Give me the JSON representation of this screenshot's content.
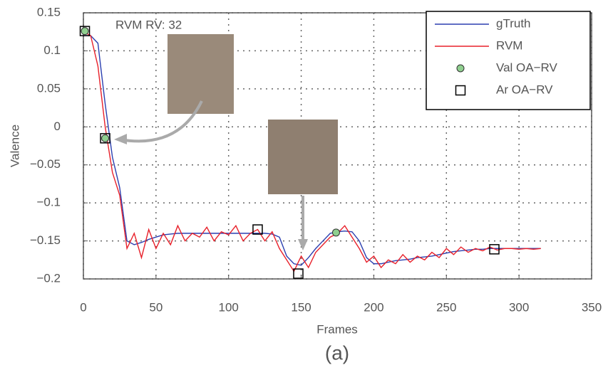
{
  "chart_data": {
    "type": "line",
    "xlabel": "Frames",
    "ylabel": "Valence",
    "annotation": "RVM RV: 32",
    "caption": "(a)",
    "xlim": [
      0,
      350
    ],
    "ylim": [
      -0.2,
      0.15
    ],
    "xticks": [
      0,
      50,
      100,
      150,
      200,
      250,
      300,
      350
    ],
    "yticks": [
      0.15,
      0.1,
      0.05,
      0,
      {
        "value": -0.05,
        "label": "−0.05"
      },
      {
        "value": -0.1,
        "label": "−0.1"
      },
      {
        "value": -0.15,
        "label": "−0.15"
      },
      {
        "value": -0.2,
        "label": "−0.2"
      }
    ],
    "grid": true,
    "legend": "upper right",
    "x": [
      0,
      5,
      10,
      15,
      20,
      25,
      30,
      35,
      40,
      45,
      50,
      55,
      60,
      65,
      70,
      75,
      80,
      85,
      90,
      95,
      100,
      105,
      110,
      115,
      120,
      125,
      130,
      135,
      140,
      145,
      150,
      155,
      160,
      165,
      170,
      175,
      180,
      185,
      190,
      195,
      200,
      205,
      210,
      215,
      220,
      225,
      230,
      235,
      240,
      245,
      250,
      255,
      260,
      265,
      270,
      275,
      280,
      285,
      290,
      295,
      300,
      305,
      310,
      315
    ],
    "series": [
      {
        "name": "gTruth",
        "color": "#2b3fb0",
        "values": [
          0.12,
          0.12,
          0.11,
          0.03,
          -0.04,
          -0.08,
          -0.15,
          -0.155,
          -0.152,
          -0.148,
          -0.145,
          -0.142,
          -0.141,
          -0.14,
          -0.14,
          -0.14,
          -0.14,
          -0.14,
          -0.14,
          -0.14,
          -0.14,
          -0.14,
          -0.14,
          -0.14,
          -0.14,
          -0.14,
          -0.141,
          -0.145,
          -0.17,
          -0.18,
          -0.182,
          -0.172,
          -0.16,
          -0.15,
          -0.14,
          -0.138,
          -0.137,
          -0.138,
          -0.15,
          -0.172,
          -0.18,
          -0.18,
          -0.178,
          -0.176,
          -0.175,
          -0.174,
          -0.172,
          -0.171,
          -0.17,
          -0.168,
          -0.166,
          -0.164,
          -0.163,
          -0.162,
          -0.161,
          -0.161,
          -0.16,
          -0.16,
          -0.16,
          -0.16,
          -0.16,
          -0.16,
          -0.16,
          -0.16
        ]
      },
      {
        "name": "RVM",
        "color": "#e8202a",
        "values": [
          0.125,
          0.12,
          0.08,
          0.0,
          -0.06,
          -0.09,
          -0.16,
          -0.14,
          -0.172,
          -0.135,
          -0.16,
          -0.14,
          -0.155,
          -0.13,
          -0.15,
          -0.14,
          -0.145,
          -0.132,
          -0.15,
          -0.138,
          -0.142,
          -0.13,
          -0.15,
          -0.14,
          -0.135,
          -0.15,
          -0.138,
          -0.16,
          -0.175,
          -0.19,
          -0.17,
          -0.185,
          -0.165,
          -0.155,
          -0.145,
          -0.14,
          -0.13,
          -0.145,
          -0.16,
          -0.178,
          -0.17,
          -0.185,
          -0.175,
          -0.18,
          -0.168,
          -0.178,
          -0.17,
          -0.175,
          -0.165,
          -0.172,
          -0.16,
          -0.168,
          -0.158,
          -0.165,
          -0.16,
          -0.163,
          -0.158,
          -0.162,
          -0.16,
          -0.16,
          -0.161,
          -0.16,
          -0.161,
          -0.16
        ]
      },
      {
        "name": "Val OA−RV",
        "color": "#8fcf8f",
        "marker": "circle",
        "x": [
          1,
          15,
          174
        ],
        "values": [
          0.126,
          -0.015,
          -0.139
        ]
      },
      {
        "name": "Ar OA−RV",
        "color": "#000000",
        "marker": "square",
        "x": [
          1,
          15,
          120,
          148,
          283
        ],
        "values": [
          0.126,
          -0.015,
          -0.135,
          -0.193,
          -0.161
        ]
      }
    ]
  }
}
